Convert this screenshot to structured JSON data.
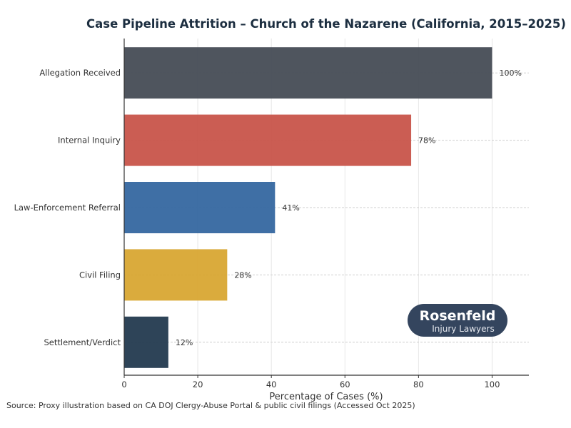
{
  "chart_data": {
    "type": "bar",
    "orientation": "horizontal",
    "title": "Case Pipeline Attrition – Church of the Nazarene (California, 2015–2025)",
    "xlabel": "Percentage of Cases (%)",
    "ylabel": "",
    "categories": [
      "Allegation Received",
      "Internal Inquiry",
      "Law-Enforcement Referral",
      "Civil Filing",
      "Settlement/Verdict"
    ],
    "values": [
      100,
      78,
      41,
      28,
      12
    ],
    "data_labels": [
      "100%",
      "78%",
      "41%",
      "28%",
      "12%"
    ],
    "colors": [
      "#464c55",
      "#c8544a",
      "#3567a0",
      "#d8a733",
      "#233a4f"
    ],
    "xlim": [
      0,
      110
    ],
    "xticks": [
      0,
      20,
      40,
      60,
      80,
      100
    ],
    "grid": true,
    "source": "Source: Proxy illustration based on CA DOJ Clergy-Abuse Portal & public civil filings (Accessed Oct 2025)"
  },
  "logo": {
    "name": "Rosenfeld",
    "tagline": "Injury Lawyers",
    "color": "#34455e"
  }
}
